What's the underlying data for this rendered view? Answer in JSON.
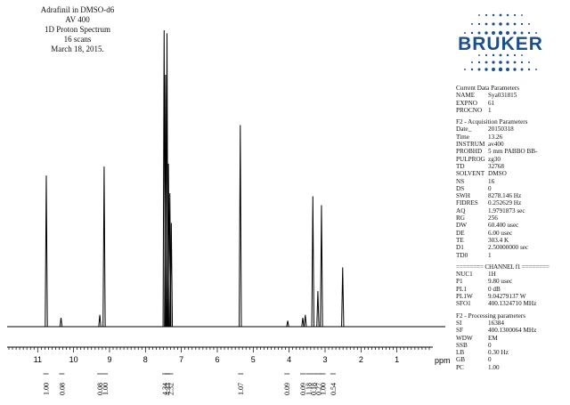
{
  "header": {
    "lines": [
      "Adrafinil in DMSO-d6",
      "AV 400",
      "1D Proton Spectrum",
      "16 scans",
      "March 18, 2015."
    ]
  },
  "logo": {
    "text": "BRUKER",
    "color": "#1a4f8c"
  },
  "params": {
    "current": {
      "title": "Current Data Parameters",
      "rows": [
        {
          "k": "NAME",
          "v": "Sya031815"
        },
        {
          "k": "EXPNO",
          "v": "61"
        },
        {
          "k": "PROCNO",
          "v": "1"
        }
      ]
    },
    "acq": {
      "title": "F2 - Acquisition Parameters",
      "rows": [
        {
          "k": "Date_",
          "v": "20150318"
        },
        {
          "k": "Time",
          "v": "13.26"
        },
        {
          "k": "INSTRUM",
          "v": "av400"
        },
        {
          "k": "PROBHD",
          "v": "5 mm PABBO BB-"
        },
        {
          "k": "PULPROG",
          "v": "zg30"
        },
        {
          "k": "TD",
          "v": "32768"
        },
        {
          "k": "SOLVENT",
          "v": "DMSO"
        },
        {
          "k": "NS",
          "v": "16"
        },
        {
          "k": "DS",
          "v": "0"
        },
        {
          "k": "SWH",
          "v": "8278.146 Hz"
        },
        {
          "k": "FIDRES",
          "v": "0.252629 Hz"
        },
        {
          "k": "AQ",
          "v": "1.9791873 sec"
        },
        {
          "k": "RG",
          "v": "256"
        },
        {
          "k": "DW",
          "v": "60.400 usec"
        },
        {
          "k": "DE",
          "v": "6.00 usec"
        },
        {
          "k": "TE",
          "v": "303.4 K"
        },
        {
          "k": "D1",
          "v": "2.50000000 sec"
        },
        {
          "k": "TD0",
          "v": "1"
        }
      ]
    },
    "channel": {
      "title": "======== CHANNEL f1 ========",
      "rows": [
        {
          "k": "NUC1",
          "v": "1H"
        },
        {
          "k": "P1",
          "v": "9.80 usec"
        },
        {
          "k": "PL1",
          "v": "0 dB"
        },
        {
          "k": "PL1W",
          "v": "9.04279137 W"
        },
        {
          "k": "SFO1",
          "v": "400.1324710 MHz"
        }
      ]
    },
    "proc": {
      "title": "F2 - Processing parameters",
      "rows": [
        {
          "k": "SI",
          "v": "16384"
        },
        {
          "k": "SF",
          "v": "400.1300064 MHz"
        },
        {
          "k": "WDW",
          "v": "EM"
        },
        {
          "k": "SSB",
          "v": "0"
        },
        {
          "k": "LB",
          "v": "0.30 Hz"
        },
        {
          "k": "GB",
          "v": "0"
        },
        {
          "k": "PC",
          "v": "1.00"
        }
      ]
    }
  },
  "chart_data": {
    "type": "line",
    "title": "",
    "xlabel": "ppm",
    "ylabel": "",
    "xlim": [
      11.85,
      0.0
    ],
    "x_reversed": true,
    "x_ticks": [
      11,
      10,
      9,
      8,
      7,
      6,
      5,
      4,
      3,
      2,
      1
    ],
    "peaks": [
      {
        "ppm": 10.76,
        "height": 0.51
      },
      {
        "ppm": 10.35,
        "height": 0.03
      },
      {
        "ppm": 9.27,
        "height": 0.04
      },
      {
        "ppm": 9.15,
        "height": 0.54
      },
      {
        "ppm": 7.48,
        "height": 1.0
      },
      {
        "ppm": 7.44,
        "height": 0.85
      },
      {
        "ppm": 7.4,
        "height": 0.99
      },
      {
        "ppm": 7.36,
        "height": 0.55
      },
      {
        "ppm": 7.32,
        "height": 0.45
      },
      {
        "ppm": 7.28,
        "height": 0.35
      },
      {
        "ppm": 5.36,
        "height": 0.68
      },
      {
        "ppm": 4.04,
        "height": 0.02
      },
      {
        "ppm": 3.62,
        "height": 0.03
      },
      {
        "ppm": 3.55,
        "height": 0.04
      },
      {
        "ppm": 3.34,
        "height": 0.44
      },
      {
        "ppm": 3.2,
        "height": 0.12
      },
      {
        "ppm": 3.1,
        "height": 0.41
      },
      {
        "ppm": 2.51,
        "height": 0.2
      }
    ],
    "integrals": [
      {
        "ppm": 10.77,
        "label": "1.00"
      },
      {
        "ppm": 10.33,
        "label": "0.08"
      },
      {
        "ppm": 9.27,
        "label": "0.08"
      },
      {
        "ppm": 9.12,
        "label": "1.00"
      },
      {
        "ppm": 7.46,
        "label": "4.34"
      },
      {
        "ppm": 7.39,
        "label": "4.33"
      },
      {
        "ppm": 7.3,
        "label": "2.32"
      },
      {
        "ppm": 5.35,
        "label": "1.07"
      },
      {
        "ppm": 4.06,
        "label": "0.09"
      },
      {
        "ppm": 3.62,
        "label": "0.09"
      },
      {
        "ppm": 3.46,
        "label": "1.18"
      },
      {
        "ppm": 3.32,
        "label": "0.18"
      },
      {
        "ppm": 3.18,
        "label": "0.27"
      },
      {
        "ppm": 3.06,
        "label": "1.00"
      },
      {
        "ppm": 2.78,
        "label": "0.54"
      }
    ]
  }
}
